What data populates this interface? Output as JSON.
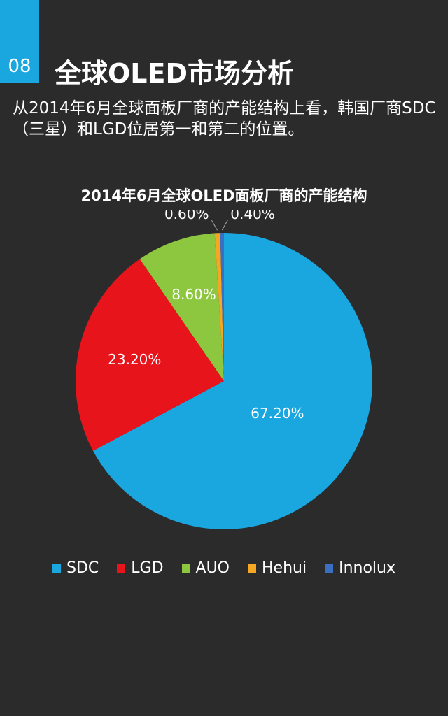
{
  "header": {
    "badge_number": "08",
    "title": "全球OLED市场分析",
    "description": "从2014年6月全球面板厂商的产能结构上看，韩国厂商SDC（三星）和LGD位居第一和第二的位置。"
  },
  "chart_data": {
    "type": "pie",
    "title": "2014年6月全球OLED面板厂商的产能结构",
    "legend_position": "bottom",
    "slices": [
      {
        "name": "SDC",
        "value": 67.2,
        "label": "67.20%",
        "color": "#1aa7e0"
      },
      {
        "name": "LGD",
        "value": 23.2,
        "label": "23.20%",
        "color": "#e8141b"
      },
      {
        "name": "AUO",
        "value": 8.6,
        "label": "8.60%",
        "color": "#8dc63f"
      },
      {
        "name": "Hehui",
        "value": 0.6,
        "label": "0.60%",
        "color": "#f5a623"
      },
      {
        "name": "Innolux",
        "value": 0.4,
        "label": "0.40%",
        "color": "#3b6fc4"
      }
    ]
  }
}
